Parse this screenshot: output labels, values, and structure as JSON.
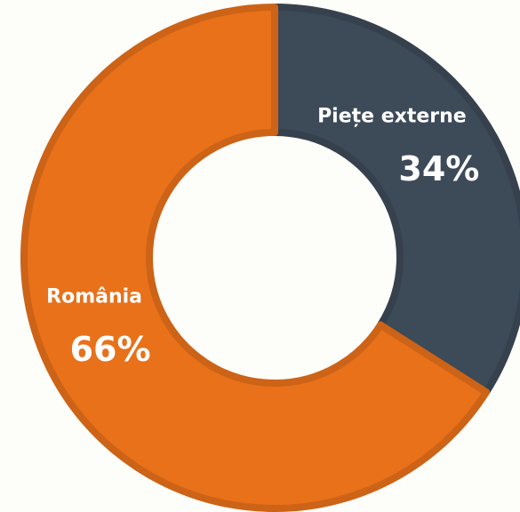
{
  "chart_data": {
    "type": "pie",
    "categories": [
      "Piețe externe",
      "România"
    ],
    "values": [
      34,
      66
    ],
    "value_labels": [
      "34%",
      "66%"
    ],
    "colors": [
      "#3d4a58",
      "#e8711a"
    ],
    "donut": true
  }
}
